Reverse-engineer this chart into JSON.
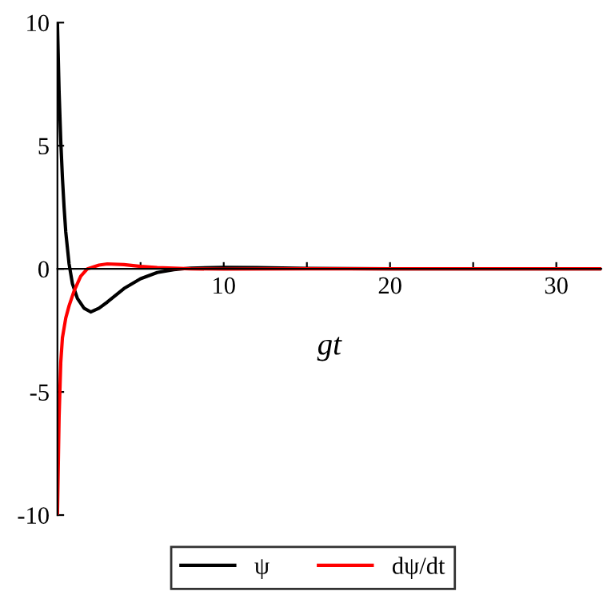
{
  "chart_data": {
    "type": "line",
    "xlabel": "gt",
    "xlim": [
      0,
      32.7
    ],
    "ylim": [
      -10,
      10
    ],
    "xticks": [
      {
        "value": 5,
        "label": null
      },
      10,
      {
        "value": 15,
        "label": null
      },
      20,
      {
        "value": 25,
        "label": null
      },
      30
    ],
    "yticks": [
      -10,
      -5,
      0,
      5,
      10
    ],
    "grid": false,
    "legend": "bottom",
    "marker": "none",
    "line_style": "solid",
    "series": [
      {
        "name": "ψ",
        "color": "#000000",
        "x": [
          0,
          0.1,
          0.2,
          0.3,
          0.4,
          0.5,
          0.7,
          0.9,
          1.2,
          1.6,
          2.0,
          2.5,
          3,
          4,
          5,
          6,
          7,
          8,
          10,
          12,
          15,
          20,
          25,
          32.7
        ],
        "values": [
          10,
          7.2,
          5.2,
          3.7,
          2.5,
          1.5,
          0.2,
          -0.6,
          -1.2,
          -1.6,
          -1.75,
          -1.6,
          -1.35,
          -0.8,
          -0.4,
          -0.15,
          -0.03,
          0.03,
          0.06,
          0.05,
          0.02,
          0,
          0,
          0
        ]
      },
      {
        "name": "dψ/dt",
        "color": "#ff0000",
        "x": [
          0,
          0.1,
          0.2,
          0.3,
          0.5,
          0.7,
          1.0,
          1.4,
          1.8,
          2.5,
          3,
          4,
          5,
          6,
          8,
          10,
          15,
          32.7
        ],
        "values": [
          -10,
          -6,
          -3.8,
          -2.8,
          -2.0,
          -1.5,
          -0.9,
          -0.3,
          0,
          0.15,
          0.2,
          0.17,
          0.1,
          0.05,
          0,
          -0.01,
          0,
          0
        ]
      }
    ]
  }
}
